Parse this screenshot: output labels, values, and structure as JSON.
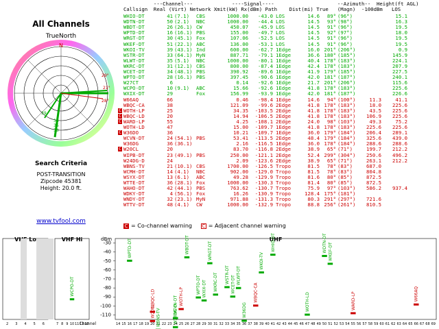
{
  "left": {
    "title": "All Channels",
    "north_label": "TrueNorth",
    "search_title": "Search Criteria",
    "criteria": [
      "POST-TRANSITION",
      "Zipcode 45381",
      "Height: 20.0 ft."
    ],
    "site_link": "www.tvfool.com",
    "polar_labels": [
      "N",
      "29°",
      "21°",
      "38",
      "36",
      "33",
      "39",
      "28°"
    ]
  },
  "table": {
    "headers": {
      "line1": "          ---Channel---             ----Signal----                     --Azimuth--  Height(ft AGL)",
      "line2": "Callsign  Real (Virt) Network Xmit(kW) Rx(dBm) Path    Dist(mi) True   (Magn)  -100dBm   LOS"
    },
    "rows": [
      {
        "cs": "WHIO-DT",
        "real": "41",
        "virt": "(7.1)",
        "net": "CBS",
        "xmit": "1000.00",
        "rx": "-43.0",
        "path": "LOS",
        "dist": "14.6",
        "true": "89°",
        "magn": "(96°)",
        "h1": "",
        "h2": "15.1",
        "color": "#0a0",
        "warn": false
      },
      {
        "cs": "WDTN-DT",
        "real": "50",
        "virt": "(2.1)",
        "net": "NBC",
        "xmit": "1000.00",
        "rx": "-44.4",
        "path": "LOS",
        "dist": "14.5",
        "true": "93°",
        "magn": "(98°)",
        "h1": "",
        "h2": "16.3",
        "color": "#0a0",
        "warn": false
      },
      {
        "cs": "WBDT-DT",
        "real": "26",
        "virt": "(26.1)",
        "net": "CW",
        "xmit": "450.07",
        "rx": "-45.9",
        "path": "LOS",
        "dist": "14.5",
        "true": "91°",
        "magn": "(96°)",
        "h1": "",
        "h2": "19.5",
        "color": "#0a0",
        "warn": false
      },
      {
        "cs": "WPTD-DT",
        "real": "16",
        "virt": "(16.1)",
        "net": "PBS",
        "xmit": "155.00",
        "rx": "-49.7",
        "path": "LOS",
        "dist": "14.5",
        "true": "92°",
        "magn": "(97°)",
        "h1": "",
        "h2": "18.0",
        "color": "#0a0",
        "warn": false
      },
      {
        "cs": "WRGT-DT",
        "real": "30",
        "virt": "(45.1)",
        "net": "Fox",
        "xmit": "107.06",
        "rx": "-52.5",
        "path": "LOS",
        "dist": "14.5",
        "true": "91°",
        "magn": "(96°)",
        "h1": "",
        "h2": "19.5",
        "color": "#0a0",
        "warn": false
      },
      {
        "cs": "WKEF-DT",
        "real": "51",
        "virt": "(22.1)",
        "net": "ABC",
        "xmit": "136.00",
        "rx": "-53.1",
        "path": "LOS",
        "dist": "14.5",
        "true": "91°",
        "magn": "(96°)",
        "h1": "",
        "h2": "19.5",
        "color": "#0a0",
        "warn": false
      },
      {
        "cs": "WKOI-TV",
        "real": "39",
        "virt": "(43.1)",
        "net": "Ind",
        "xmit": "600.00",
        "rx": "-62.7",
        "path": "1Edge",
        "dist": "16.0",
        "true": "201°",
        "magn": "(206°)",
        "h1": "",
        "h2": "0.9",
        "color": "#0a0",
        "warn": false
      },
      {
        "cs": "WSTR-DT",
        "real": "33",
        "virt": "(64.1)",
        "net": "MyN",
        "xmit": "887.71",
        "rx": "-79.1",
        "path": "1Edge",
        "dist": "36.6",
        "true": "180°",
        "magn": "(185°)",
        "h1": "",
        "h2": "145.9",
        "color": "#0a0",
        "warn": false
      },
      {
        "cs": "WLWT-DT",
        "real": "35",
        "virt": "(5.1)",
        "net": "NBC",
        "xmit": "1000.00",
        "rx": "-80.1",
        "path": "1Edge",
        "dist": "40.4",
        "true": "178°",
        "magn": "(183°)",
        "h1": "",
        "h2": "224.1",
        "color": "#0a0",
        "warn": false
      },
      {
        "cs": "WKRC-DT",
        "real": "31",
        "virt": "(12.1)",
        "net": "CBS",
        "xmit": "800.00",
        "rx": "-87.4",
        "path": "1Edge",
        "dist": "42.4",
        "true": "178°",
        "magn": "(183°)",
        "h1": "",
        "h2": "207.9",
        "color": "#0a0",
        "warn": false
      },
      {
        "cs": "WCET-DT",
        "real": "34",
        "virt": "(48.1)",
        "net": "PBS",
        "xmit": "390.92",
        "rx": "-89.6",
        "path": "1Edge",
        "dist": "41.9",
        "true": "179°",
        "magn": "(185°)",
        "h1": "",
        "h2": "227.5",
        "color": "#0a0",
        "warn": false
      },
      {
        "cs": "WPTO-DT",
        "real": "28",
        "virt": "(16.1)",
        "net": "PBS",
        "xmit": "397.45",
        "rx": "-90.6",
        "path": "1Edge",
        "dist": "42.0",
        "true": "181°",
        "magn": "(187°)",
        "h1": "",
        "h2": "240.1",
        "color": "#0a0",
        "warn": false
      },
      {
        "cs": "W27CT",
        "real": "6",
        "virt": "",
        "net": "",
        "xmit": "0.14",
        "rx": "-92.6",
        "path": "1Edge",
        "dist": "21.7",
        "true": "201°",
        "magn": "(206°)",
        "h1": "",
        "h2": "115.6",
        "color": "#0a0",
        "warn": false
      },
      {
        "cs": "WCPO-DT",
        "real": "10",
        "virt": "(9.1)",
        "net": "ABC",
        "xmit": "15.66",
        "rx": "-92.6",
        "path": "1Edge",
        "dist": "41.8",
        "true": "178°",
        "magn": "(183°)",
        "h1": "",
        "h2": "225.6",
        "color": "#0a0",
        "warn": false
      },
      {
        "cs": "WXIX-DT",
        "real": "29",
        "virt": "",
        "net": "Fox",
        "xmit": "156.99",
        "rx": "-93.9",
        "path": "1Edge",
        "dist": "42.0",
        "true": "181°",
        "magn": "(187°)",
        "h1": "",
        "h2": "226.6",
        "color": "#0a0",
        "warn": false
      },
      {
        "cs": "W66AQ",
        "real": "66",
        "virt": "",
        "net": "",
        "xmit": "0.46",
        "rx": "-98.4",
        "path": "1Edge",
        "dist": "14.6",
        "true": "94°",
        "magn": "(100°)",
        "h1": "11.3",
        "h2": "41.1",
        "color": "#c00",
        "warn": false
      },
      {
        "cs": "WBQC-CA",
        "real": "38",
        "virt": "",
        "net": "",
        "xmit": "121.09",
        "rx": "-99.6",
        "path": "2Edge",
        "dist": "41.8",
        "true": "178°",
        "magn": "(183°)",
        "h1": "18.0",
        "h2": "225.6",
        "color": "#c00",
        "warn": false
      },
      {
        "cs": "WOTH-LP",
        "real": "25",
        "virt": "",
        "net": "",
        "xmit": "34.35",
        "rx": "-103.5",
        "path": "2Edge",
        "dist": "41.8",
        "true": "178°",
        "magn": "(183°)",
        "h1": "43.5",
        "h2": "225.6",
        "color": "#c00",
        "warn": true
      },
      {
        "cs": "WBQC-LD",
        "real": "20",
        "virt": "",
        "net": "",
        "xmit": "14.94",
        "rx": "-106.5",
        "path": "2Edge",
        "dist": "41.8",
        "true": "178°",
        "magn": "(183°)",
        "h1": "106.9",
        "h2": "225.6",
        "color": "#c00",
        "warn": true
      },
      {
        "cs": "WARD-LP",
        "real": "55",
        "virt": "",
        "net": "",
        "xmit": "4.25",
        "rx": "-108.1",
        "path": "2Edge",
        "dist": "24.0",
        "true": "98°",
        "magn": "(103°)",
        "h1": "49.3",
        "h2": "75.2",
        "color": "#c00",
        "warn": true
      },
      {
        "cs": "WOTH-LD",
        "real": "47",
        "virt": "",
        "net": "",
        "xmit": "15.00",
        "rx": "-109.7",
        "path": "1Edge",
        "dist": "41.8",
        "true": "178°",
        "magn": "(183°)",
        "h1": "225.6",
        "h2": "225.6",
        "color": "#c00",
        "warn": false
      },
      {
        "cs": "W36DO",
        "real": "36",
        "virt": "",
        "net": "",
        "xmit": "10.21",
        "rx": "-109.7",
        "path": "1Edge",
        "dist": "36.0",
        "true": "179°",
        "magn": "(184°)",
        "h1": "206.4",
        "h2": "289.1",
        "color": "#c00",
        "warn": true
      },
      {
        "cs": "WCVN-DT",
        "real": "24",
        "virt": "(54.1)",
        "net": "PBS",
        "xmit": "53.41",
        "rx": "-113.5",
        "path": "2Edge",
        "dist": "48.4",
        "true": "179°",
        "magn": "(184°)",
        "h1": "325.6",
        "h2": "439.0",
        "color": "#c00",
        "warn": false
      },
      {
        "cs": "W36DG",
        "real": "36",
        "virt": "(36.1)",
        "net": "",
        "xmit": "2.16",
        "rx": "-116.5",
        "path": "1Edge",
        "dist": "36.0",
        "true": "178°",
        "magn": "(184°)",
        "h1": "288.6",
        "h2": "288.6",
        "color": "#c00",
        "warn": false
      },
      {
        "cs": "W20CL",
        "real": "20",
        "virt": "",
        "net": "",
        "xmit": "83.70",
        "rx": "-116.8",
        "path": "2Edge",
        "dist": "38.9",
        "true": "65°",
        "magn": "(71°)",
        "h1": "199.7",
        "h2": "212.2",
        "color": "#c00",
        "warn": true
      },
      {
        "cs": "WIPB-DT",
        "real": "23",
        "virt": "(49.1)",
        "net": "PBS",
        "xmit": "250.00",
        "rx": "-121.1",
        "path": "2Edge",
        "dist": "52.4",
        "true": "299°",
        "magn": "(304°)",
        "h1": "250.6",
        "h2": "496.2",
        "color": "#c00",
        "warn": false
      },
      {
        "cs": "W24DG-D",
        "real": "24",
        "virt": "",
        "net": "",
        "xmit": "2.09",
        "rx": "-123.6",
        "path": "2Edge",
        "dist": "38.9",
        "true": "65°",
        "magn": "(71°)",
        "h1": "263.1",
        "h2": "212.2",
        "color": "#c00",
        "warn": false
      },
      {
        "cs": "WBNS-TV",
        "real": "21",
        "virt": "(10.1)",
        "net": "CBS",
        "xmit": "1700.00",
        "rx": "-126.5",
        "path": "Tropo",
        "dist": "81.5",
        "true": "78°",
        "magn": "(83°)",
        "h1": "687.0",
        "h2": "",
        "color": "#c00",
        "warn": false
      },
      {
        "cs": "WCMH-DT",
        "real": "14",
        "virt": "(4.1)",
        "net": "NBC",
        "xmit": "902.00",
        "rx": "-129.0",
        "path": "Tropo",
        "dist": "81.5",
        "true": "78°",
        "magn": "(83°)",
        "h1": "804.8",
        "h2": "",
        "color": "#c00",
        "warn": false
      },
      {
        "cs": "WSYX-DT",
        "real": "13",
        "virt": "(6.1)",
        "net": "ABC",
        "xmit": "49.28",
        "rx": "-129.9",
        "path": "Tropo",
        "dist": "81.6",
        "true": "80°",
        "magn": "(85°)",
        "h1": "872.5",
        "h2": "",
        "color": "#c00",
        "warn": false
      },
      {
        "cs": "WTTE-DT",
        "real": "36",
        "virt": "(28.1)",
        "net": "Fox",
        "xmit": "1000.00",
        "rx": "-130.3",
        "path": "Tropo",
        "dist": "81.4",
        "true": "80°",
        "magn": "(85°)",
        "h1": "872.5",
        "h2": "",
        "color": "#c00",
        "warn": false
      },
      {
        "cs": "WAHO-DT",
        "real": "42",
        "virt": "(44.1)",
        "net": "PBS",
        "xmit": "763.62",
        "rx": "-130.7",
        "path": "Tropo",
        "dist": "75.9",
        "true": "97°",
        "magn": "(103°)",
        "h1": "586.2",
        "h2": "937.4",
        "color": "#c00",
        "warn": false
      },
      {
        "cs": "WDKY-DT",
        "real": "4",
        "virt": "(56.1)",
        "net": "Fox",
        "xmit": "16.26",
        "rx": "-130.9",
        "path": "Tropo",
        "dist": "128.4",
        "true": "175°",
        "magn": "(181°)",
        "h1": "",
        "h2": "",
        "color": "#c00",
        "warn": false
      },
      {
        "cs": "WNDY-DT",
        "real": "32",
        "virt": "(23.1)",
        "net": "MyN",
        "xmit": "971.88",
        "rx": "-131.3",
        "path": "Tropo",
        "dist": "80.3",
        "true": "291°",
        "magn": "(297°)",
        "h1": "721.6",
        "h2": "",
        "color": "#c00",
        "warn": false
      },
      {
        "cs": "WTTV-DT",
        "real": "48",
        "virt": "(4.1)",
        "net": "CW",
        "xmit": "1000.00",
        "rx": "-132.9",
        "path": "Tropo",
        "dist": "88.8",
        "true": "256°",
        "magn": "(261°)",
        "h1": "810.5",
        "h2": "",
        "color": "#c00",
        "warn": false
      }
    ]
  },
  "legend": {
    "co": "= Co-channel warning",
    "adj": "= Adjacent channel warning",
    "icon": "C"
  },
  "spectrum": {
    "vhf_lo": "VHF Lo",
    "vhf_hi": "VHF Hi",
    "uhf": "UHF",
    "dbm_label": "dBm",
    "channel_label": "Channel",
    "y_ticks": [
      "-30",
      "-40",
      "-50",
      "-60",
      "-70",
      "-80",
      "-90",
      "-100",
      "-110"
    ],
    "lo_channels": [
      "2",
      "3",
      "4",
      "5",
      "6"
    ],
    "hi_channels": [
      "7",
      "8",
      "9",
      "10",
      "11",
      "12",
      "13"
    ],
    "uhf_channels": [
      "14",
      "15",
      "16",
      "17",
      "18",
      "19",
      "20",
      "21",
      "22",
      "23",
      "24",
      "25",
      "26",
      "27",
      "28",
      "29",
      "30",
      "31",
      "32",
      "33",
      "34",
      "35",
      "36",
      "37",
      "38",
      "39",
      "40",
      "41",
      "42",
      "43",
      "44",
      "45",
      "46",
      "47",
      "48",
      "49",
      "50",
      "51",
      "52",
      "53",
      "54",
      "55",
      "56",
      "57",
      "58",
      "59",
      "60",
      "61",
      "62",
      "63",
      "64",
      "65",
      "66",
      "67",
      "68",
      "69"
    ],
    "stations": [
      {
        "name": "W27CT",
        "ch": 6,
        "dbm": -92.6,
        "color": "#0a0",
        "band": "lo"
      },
      {
        "name": "WCPO-DT",
        "ch": 10,
        "dbm": -92.6,
        "color": "#0a0",
        "band": "hi"
      },
      {
        "name": "WPTD-DT",
        "ch": 16,
        "dbm": -49.7,
        "color": "#0a0",
        "band": "uhf"
      },
      {
        "name": "WBQC-LD",
        "ch": 20,
        "dbm": -106.5,
        "color": "#c00",
        "band": "uhf"
      },
      {
        "name": "W20CL",
        "ch": 20,
        "dbm": -116.8,
        "color": "#c00",
        "band": "uhf"
      },
      {
        "name": "WBNS-TV",
        "ch": 21,
        "dbm": -126.5,
        "color": "#0a0",
        "band": "uhf"
      },
      {
        "name": "W24DG-D",
        "ch": 24,
        "dbm": -123.6,
        "color": "#0a0",
        "band": "uhf"
      },
      {
        "name": "WCVN-DT",
        "ch": 24,
        "dbm": -113.5,
        "color": "#0a0",
        "band": "uhf"
      },
      {
        "name": "WOTH-LP",
        "ch": 25,
        "dbm": -103.5,
        "color": "#c00",
        "band": "uhf"
      },
      {
        "name": "WBDT-DT",
        "ch": 26,
        "dbm": -45.9,
        "color": "#0a0",
        "band": "uhf"
      },
      {
        "name": "WPTO-DT",
        "ch": 28,
        "dbm": -90.6,
        "color": "#0a0",
        "band": "uhf"
      },
      {
        "name": "WXIX-DT",
        "ch": 29,
        "dbm": -93.9,
        "color": "#0a0",
        "band": "uhf"
      },
      {
        "name": "WRGT-DT",
        "ch": 30,
        "dbm": -52.5,
        "color": "#0a0",
        "band": "uhf"
      },
      {
        "name": "WKRC-DT",
        "ch": 31,
        "dbm": -87.4,
        "color": "#0a0",
        "band": "uhf"
      },
      {
        "name": "WSTR-DT",
        "ch": 33,
        "dbm": -79.1,
        "color": "#0a0",
        "band": "uhf"
      },
      {
        "name": "WCET-DT",
        "ch": 34,
        "dbm": -89.6,
        "color": "#0a0",
        "band": "uhf"
      },
      {
        "name": "WLWT-DT",
        "ch": 35,
        "dbm": -80.1,
        "color": "#0a0",
        "band": "uhf"
      },
      {
        "name": "W36DG",
        "ch": 36,
        "dbm": -116.5,
        "color": "#0a0",
        "band": "uhf"
      },
      {
        "name": "WBQC-CA",
        "ch": 38,
        "dbm": -99.6,
        "color": "#c00",
        "band": "uhf"
      },
      {
        "name": "WKOI-TV",
        "ch": 39,
        "dbm": -62.7,
        "color": "#0a0",
        "band": "uhf"
      },
      {
        "name": "WHIO-DT",
        "ch": 41,
        "dbm": -43.0,
        "color": "#0a0",
        "band": "uhf"
      },
      {
        "name": "WOTH-LD",
        "ch": 47,
        "dbm": -109.7,
        "color": "#0a0",
        "band": "uhf"
      },
      {
        "name": "WDTN-DT",
        "ch": 50,
        "dbm": -44.4,
        "color": "#0a0",
        "band": "uhf"
      },
      {
        "name": "WKEF-DT",
        "ch": 51,
        "dbm": -53.1,
        "color": "#0a0",
        "band": "uhf"
      },
      {
        "name": "WARD-LP",
        "ch": 55,
        "dbm": -108.1,
        "color": "#c00",
        "band": "uhf"
      },
      {
        "name": "W66AQ",
        "ch": 66,
        "dbm": -98.4,
        "color": "#c00",
        "band": "uhf"
      }
    ]
  }
}
